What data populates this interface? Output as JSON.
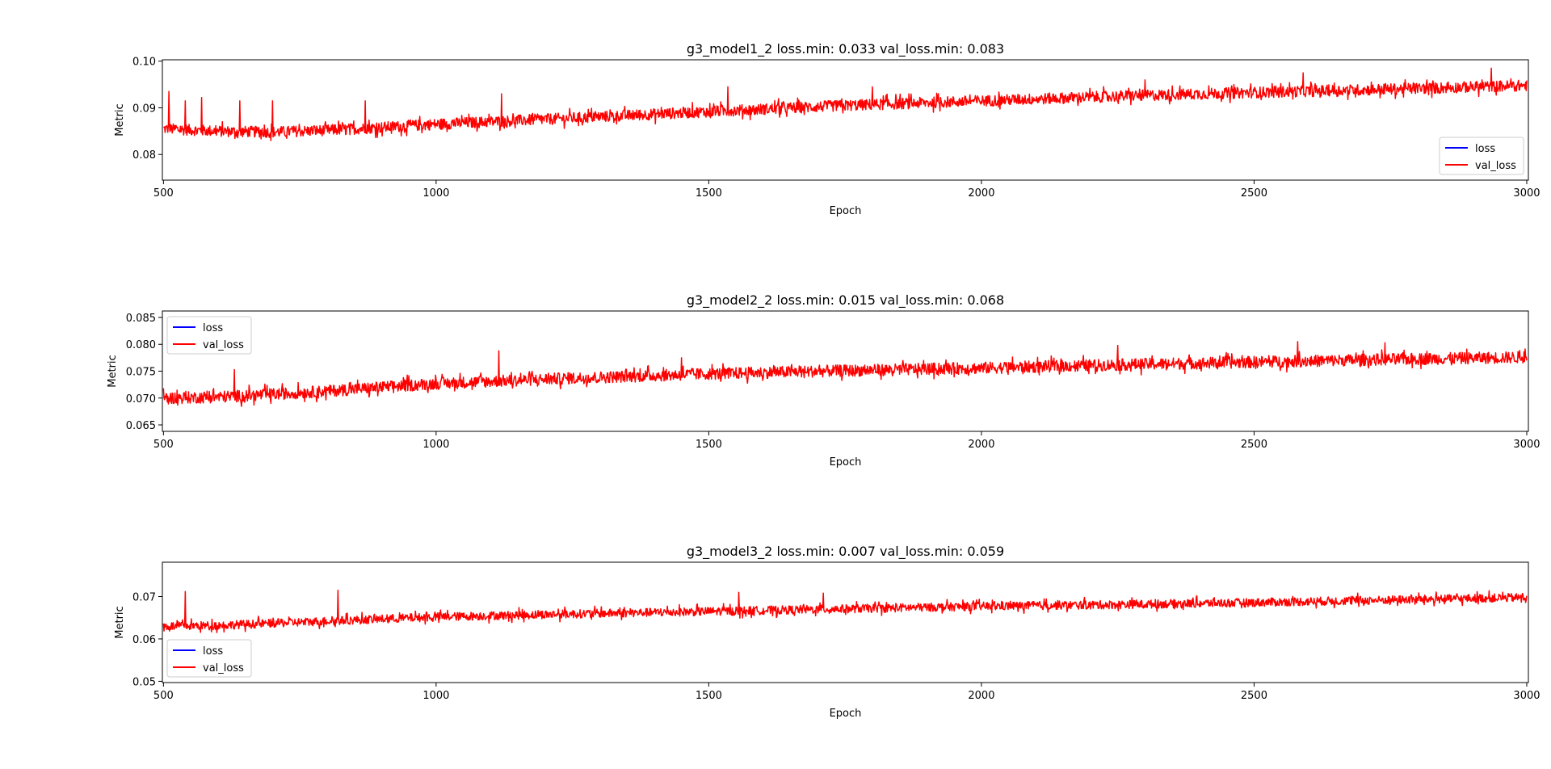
{
  "figure": {
    "background": "#ffffff"
  },
  "chart_data": [
    {
      "type": "line",
      "title": "g3_model1_2 loss.min: 0.033 val_loss.min: 0.083",
      "xlabel": "Epoch",
      "ylabel": "Metric",
      "xlim": [
        498,
        3003
      ],
      "ylim": [
        0.0745,
        0.1003
      ],
      "xticks": [
        500,
        1000,
        1500,
        2000,
        2500,
        3000
      ],
      "xtick_labels": [
        "500",
        "1000",
        "1500",
        "2000",
        "2500",
        "3000"
      ],
      "yticks": [
        0.08,
        0.09,
        0.1
      ],
      "ytick_labels": [
        "0.08",
        "0.09",
        "0.10"
      ],
      "grid": false,
      "legend_position": "lower-right",
      "legend": [
        "loss",
        "val_loss"
      ],
      "series": [
        {
          "name": "loss",
          "color": "#0000ff",
          "x": [],
          "values": []
        },
        {
          "name": "val_loss",
          "color": "#ff0000",
          "x": [
            500,
            600,
            700,
            800,
            900,
            1000,
            1250,
            1500,
            1750,
            2000,
            2250,
            2500,
            2750,
            3000
          ],
          "values": [
            0.0855,
            0.085,
            0.0848,
            0.0852,
            0.0858,
            0.0865,
            0.0878,
            0.0892,
            0.0905,
            0.0915,
            0.0925,
            0.0933,
            0.094,
            0.0948
          ],
          "noise": 0.0012,
          "spikes": [
            [
              510,
              0.0935
            ],
            [
              540,
              0.0915
            ],
            [
              570,
              0.0922
            ],
            [
              640,
              0.0915
            ],
            [
              700,
              0.0915
            ],
            [
              870,
              0.0915
            ],
            [
              1120,
              0.093
            ],
            [
              1535,
              0.0945
            ],
            [
              1800,
              0.0945
            ],
            [
              2300,
              0.096
            ],
            [
              2590,
              0.0975
            ],
            [
              2935,
              0.0985
            ]
          ]
        }
      ]
    },
    {
      "type": "line",
      "title": "g3_model2_2 loss.min: 0.015 val_loss.min: 0.068",
      "xlabel": "Epoch",
      "ylabel": "Metric",
      "xlim": [
        498,
        3003
      ],
      "ylim": [
        0.0638,
        0.0862
      ],
      "xticks": [
        500,
        1000,
        1500,
        2000,
        2500,
        3000
      ],
      "xtick_labels": [
        "500",
        "1000",
        "1500",
        "2000",
        "2500",
        "3000"
      ],
      "yticks": [
        0.065,
        0.07,
        0.075,
        0.08,
        0.085
      ],
      "ytick_labels": [
        "0.065",
        "0.070",
        "0.075",
        "0.080",
        "0.085"
      ],
      "grid": false,
      "legend_position": "upper-left",
      "legend": [
        "loss",
        "val_loss"
      ],
      "series": [
        {
          "name": "loss",
          "color": "#0000ff",
          "x": [],
          "values": []
        },
        {
          "name": "val_loss",
          "color": "#ff0000",
          "x": [
            500,
            600,
            700,
            800,
            900,
            1000,
            1250,
            1500,
            1750,
            2000,
            2250,
            2500,
            2750,
            3000
          ],
          "values": [
            0.07,
            0.0702,
            0.0707,
            0.0713,
            0.072,
            0.0727,
            0.0737,
            0.0745,
            0.0751,
            0.0756,
            0.0762,
            0.0767,
            0.0772,
            0.0776
          ],
          "noise": 0.0011,
          "spikes": [
            [
              630,
              0.0753
            ],
            [
              1115,
              0.0788
            ],
            [
              1450,
              0.0775
            ],
            [
              2250,
              0.0798
            ],
            [
              2580,
              0.0805
            ],
            [
              2740,
              0.0803
            ]
          ]
        }
      ]
    },
    {
      "type": "line",
      "title": "g3_model3_2 loss.min: 0.007 val_loss.min: 0.059",
      "xlabel": "Epoch",
      "ylabel": "Metric",
      "xlim": [
        498,
        3003
      ],
      "ylim": [
        0.0497,
        0.0781
      ],
      "xticks": [
        500,
        1000,
        1500,
        2000,
        2500,
        3000
      ],
      "xtick_labels": [
        "500",
        "1000",
        "1500",
        "2000",
        "2500",
        "3000"
      ],
      "yticks": [
        0.05,
        0.06,
        0.07
      ],
      "ytick_labels": [
        "0.05",
        "0.06",
        "0.07"
      ],
      "grid": false,
      "legend_position": "lower-left",
      "legend": [
        "loss",
        "val_loss"
      ],
      "series": [
        {
          "name": "loss",
          "color": "#0000ff",
          "x": [],
          "values": []
        },
        {
          "name": "val_loss",
          "color": "#ff0000",
          "x": [
            500,
            600,
            700,
            800,
            900,
            1000,
            1250,
            1500,
            1750,
            2000,
            2250,
            2500,
            2750,
            3000
          ],
          "values": [
            0.063,
            0.0632,
            0.0637,
            0.0642,
            0.0647,
            0.0652,
            0.0659,
            0.0665,
            0.0671,
            0.0677,
            0.0681,
            0.0686,
            0.0692,
            0.0698
          ],
          "noise": 0.001,
          "spikes": [
            [
              540,
              0.0712
            ],
            [
              820,
              0.0715
            ],
            [
              1555,
              0.071
            ],
            [
              1710,
              0.0708
            ],
            [
              2690,
              0.0708
            ]
          ]
        }
      ]
    }
  ]
}
